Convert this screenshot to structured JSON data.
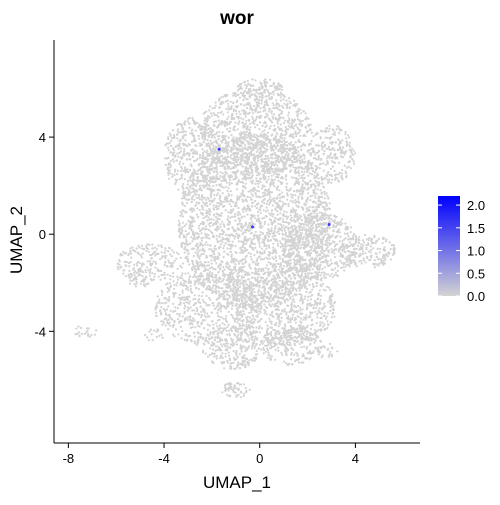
{
  "chart_data": {
    "type": "scatter",
    "title": "wor",
    "xlabel": "UMAP_1",
    "ylabel": "UMAP_2",
    "xlim": [
      -8.6,
      6.7
    ],
    "ylim": [
      -8.6,
      8.0
    ],
    "x_ticks": [
      -8,
      -4,
      0,
      4
    ],
    "x_tick_labels": [
      "-8",
      "-4",
      "0",
      "4"
    ],
    "y_ticks": [
      -4,
      0,
      4
    ],
    "y_tick_labels": [
      "-4",
      "0",
      "4"
    ],
    "grid": false,
    "point_color": "#d3d3d3",
    "colorbar": {
      "min": 0.0,
      "max": 2.2,
      "low_color": "#d3d3d3",
      "high_color": "#0000ff",
      "ticks": [
        0.0,
        0.5,
        1.0,
        1.5,
        2.0
      ],
      "tick_labels": [
        "0.0",
        "0.5",
        "1.0",
        "1.5",
        "2.0"
      ]
    },
    "cloud_regions": [
      {
        "cx": -0.2,
        "cy": 0.5,
        "rx": 3.2,
        "ry": 3.6,
        "density": 9
      },
      {
        "cx": -0.2,
        "cy": 4.2,
        "rx": 2.4,
        "ry": 1.8,
        "density": 8
      },
      {
        "cx": 0.0,
        "cy": 6.0,
        "rx": 1.0,
        "ry": 0.4,
        "density": 8
      },
      {
        "cx": -2.8,
        "cy": 3.2,
        "rx": 1.2,
        "ry": 1.6,
        "density": 7
      },
      {
        "cx": 3.0,
        "cy": 3.3,
        "rx": 1.0,
        "ry": 1.2,
        "density": 7
      },
      {
        "cx": 4.5,
        "cy": -0.7,
        "rx": 1.2,
        "ry": 0.7,
        "density": 8
      },
      {
        "cx": 2.5,
        "cy": -0.5,
        "rx": 1.6,
        "ry": 1.4,
        "density": 8
      },
      {
        "cx": -4.6,
        "cy": -1.2,
        "rx": 1.4,
        "ry": 0.8,
        "density": 6
      },
      {
        "cx": -5.0,
        "cy": -1.8,
        "rx": 0.6,
        "ry": 0.4,
        "density": 7
      },
      {
        "cx": -2.2,
        "cy": -3.0,
        "rx": 2.2,
        "ry": 1.6,
        "density": 6
      },
      {
        "cx": 1.0,
        "cy": -3.0,
        "rx": 2.2,
        "ry": 1.6,
        "density": 7
      },
      {
        "cx": -1.2,
        "cy": -4.7,
        "rx": 1.2,
        "ry": 0.9,
        "density": 8
      },
      {
        "cx": 1.3,
        "cy": -4.6,
        "rx": 1.3,
        "ry": 0.8,
        "density": 7
      },
      {
        "cx": 2.8,
        "cy": -4.8,
        "rx": 0.5,
        "ry": 0.3,
        "density": 6
      },
      {
        "cx": -1.0,
        "cy": -6.4,
        "rx": 0.6,
        "ry": 0.4,
        "density": 8
      },
      {
        "cx": -7.3,
        "cy": -4.0,
        "rx": 0.5,
        "ry": 0.25,
        "density": 6
      },
      {
        "cx": -4.4,
        "cy": -4.2,
        "rx": 0.4,
        "ry": 0.3,
        "density": 5
      }
    ],
    "expressing_cells": [
      {
        "x": -1.7,
        "y": 3.5,
        "value": 1.0
      },
      {
        "x": -0.3,
        "y": 0.3,
        "value": 1.3
      },
      {
        "x": 2.9,
        "y": 0.4,
        "value": 1.1
      }
    ]
  }
}
